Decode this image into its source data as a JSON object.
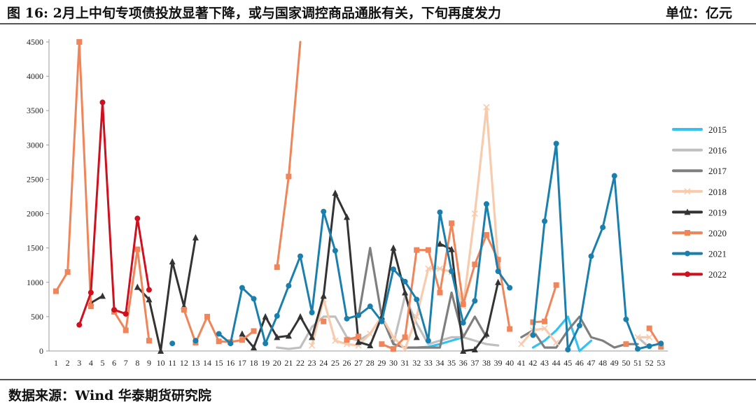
{
  "header": {
    "title": "图 16:    2月上中旬专项债投放显著下降，或与国家调控商品通胀有关，下旬再度发力",
    "unit": "单位：亿元"
  },
  "footer": {
    "source": "数据来源：Wind  华泰期货研究院"
  },
  "chart_data": {
    "type": "line",
    "x": [
      1,
      2,
      3,
      4,
      5,
      6,
      7,
      8,
      9,
      10,
      11,
      12,
      13,
      14,
      15,
      16,
      17,
      18,
      19,
      20,
      21,
      22,
      23,
      24,
      25,
      26,
      27,
      28,
      29,
      30,
      31,
      32,
      33,
      34,
      35,
      36,
      37,
      38,
      39,
      40,
      41,
      42,
      43,
      44,
      45,
      46,
      47,
      48,
      49,
      50,
      51,
      52,
      53
    ],
    "ylim": [
      0,
      4500
    ],
    "yticks": [
      0,
      500,
      1000,
      1500,
      2000,
      2500,
      3000,
      3500,
      4000,
      4500
    ],
    "legend_position": "right",
    "grid": false,
    "series": [
      {
        "name": "2015",
        "color": "#33c2f2",
        "marker": "none",
        "values": [
          null,
          null,
          null,
          null,
          null,
          null,
          null,
          null,
          null,
          null,
          null,
          null,
          null,
          null,
          null,
          null,
          null,
          null,
          null,
          null,
          null,
          null,
          null,
          null,
          null,
          null,
          null,
          null,
          null,
          null,
          null,
          50,
          60,
          100,
          150,
          200,
          null,
          150,
          null,
          null,
          null,
          50,
          150,
          300,
          500,
          0,
          150,
          null,
          null,
          null,
          null,
          null,
          null
        ]
      },
      {
        "name": "2016",
        "color": "#bfbfbf",
        "marker": "none",
        "values": [
          null,
          null,
          null,
          null,
          null,
          null,
          null,
          null,
          null,
          null,
          null,
          null,
          null,
          null,
          null,
          null,
          null,
          null,
          null,
          50,
          30,
          50,
          350,
          500,
          500,
          200,
          150,
          250,
          500,
          100,
          800,
          400,
          100,
          150,
          200,
          200,
          150,
          100,
          80,
          null,
          null,
          null,
          null,
          null,
          null,
          null,
          null,
          null,
          null,
          null,
          200,
          50,
          null
        ]
      },
      {
        "name": "2017",
        "color": "#7f7f7f",
        "marker": "none",
        "values": [
          null,
          null,
          null,
          null,
          null,
          null,
          null,
          null,
          null,
          null,
          null,
          null,
          null,
          null,
          null,
          null,
          null,
          null,
          null,
          null,
          null,
          null,
          null,
          null,
          null,
          null,
          500,
          1500,
          500,
          100,
          50,
          50,
          50,
          50,
          850,
          200,
          500,
          200,
          null,
          null,
          200,
          300,
          50,
          50,
          300,
          500,
          200,
          150,
          50,
          100,
          100,
          null,
          null
        ]
      },
      {
        "name": "2018",
        "color": "#f9cbad",
        "marker": "x",
        "values": [
          null,
          null,
          null,
          null,
          null,
          null,
          null,
          null,
          null,
          null,
          null,
          null,
          null,
          null,
          null,
          null,
          null,
          null,
          null,
          null,
          null,
          null,
          80,
          750,
          150,
          100,
          80,
          250,
          500,
          200,
          30,
          500,
          1200,
          1200,
          1150,
          650,
          2000,
          3550,
          1300,
          null,
          100,
          300,
          330,
          120,
          null,
          null,
          null,
          null,
          null,
          null,
          200,
          200,
          null
        ]
      },
      {
        "name": "2019",
        "color": "#333333",
        "marker": "triangle",
        "values": [
          null,
          null,
          null,
          700,
          800,
          null,
          null,
          930,
          750,
          0,
          1300,
          650,
          1650,
          null,
          null,
          null,
          250,
          50,
          500,
          200,
          220,
          500,
          200,
          800,
          2300,
          1950,
          130,
          80,
          500,
          1500,
          850,
          200,
          null,
          1560,
          1480,
          0,
          20,
          250,
          1000,
          null,
          null,
          null,
          null,
          null,
          null,
          null,
          null,
          null,
          null,
          null,
          null,
          null,
          null
        ]
      },
      {
        "name": "2020",
        "color": "#f0855a",
        "marker": "square",
        "values": [
          870,
          1150,
          4500,
          650,
          null,
          570,
          300,
          1480,
          150,
          null,
          null,
          600,
          120,
          500,
          140,
          130,
          160,
          290,
          null,
          1220,
          2540,
          4500,
          null,
          430,
          null,
          160,
          210,
          null,
          100,
          30,
          200,
          1470,
          1470,
          850,
          1860,
          680,
          1260,
          1690,
          1330,
          320,
          null,
          420,
          430,
          960,
          null,
          null,
          null,
          null,
          null,
          100,
          null,
          330,
          60
        ]
      },
      {
        "name": "2021",
        "color": "#1b7fae",
        "marker": "circle",
        "values": [
          null,
          null,
          null,
          null,
          null,
          null,
          null,
          null,
          null,
          null,
          110,
          null,
          150,
          null,
          250,
          110,
          920,
          760,
          110,
          510,
          950,
          1380,
          560,
          2030,
          1460,
          470,
          520,
          650,
          430,
          1190,
          1010,
          750,
          150,
          2020,
          1160,
          410,
          730,
          2140,
          1160,
          920,
          null,
          230,
          1890,
          3020,
          20,
          370,
          1380,
          1800,
          2550,
          460,
          30,
          70,
          110
        ]
      },
      {
        "name": "2022",
        "color": "#d0101e",
        "marker": "circle",
        "values": [
          null,
          null,
          380,
          850,
          3620,
          600,
          540,
          1930,
          890,
          null,
          null,
          null,
          null,
          null,
          null,
          null,
          null,
          null,
          null,
          null,
          null,
          null,
          null,
          null,
          null,
          null,
          null,
          null,
          null,
          null,
          null,
          null,
          null,
          null,
          null,
          null,
          null,
          null,
          null,
          null,
          null,
          null,
          null,
          null,
          null,
          null,
          null,
          null,
          null,
          null,
          null,
          null,
          null
        ]
      }
    ]
  }
}
